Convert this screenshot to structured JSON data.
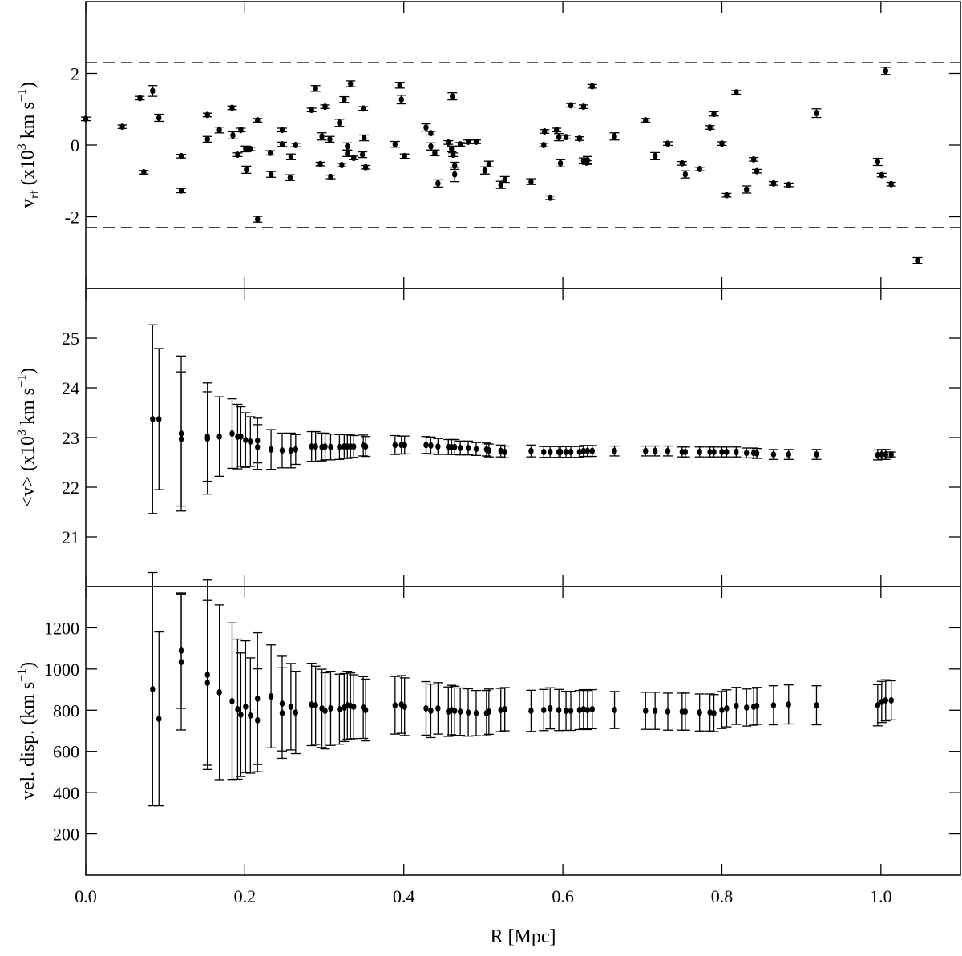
{
  "chart_data": [
    {
      "type": "scatter",
      "color": "#000000",
      "ylabel": [
        {
          "text": "v"
        },
        {
          "text": "rf",
          "script": "sub"
        },
        {
          "text": " (x10"
        },
        {
          "text": "3",
          "script": "super"
        },
        {
          "text": " km s"
        },
        {
          "text": "−1",
          "script": "super"
        },
        {
          "text": ")"
        }
      ],
      "xlim": [
        0,
        1.1
      ],
      "ylim": [
        -4,
        4
      ],
      "yticks": [
        -2,
        0,
        2
      ],
      "xticks": [
        0,
        0.2,
        0.4,
        0.6,
        0.8,
        1
      ],
      "xtick_labels": false,
      "hlines": [
        2.3,
        -2.3
      ],
      "x": [
        0.0,
        0.046,
        0.068,
        0.073,
        0.084,
        0.092,
        0.12,
        0.12,
        0.153,
        0.153,
        0.168,
        0.184,
        0.185,
        0.191,
        0.195,
        0.201,
        0.202,
        0.207,
        0.216,
        0.216,
        0.232,
        0.233,
        0.247,
        0.247,
        0.257,
        0.258,
        0.264,
        0.284,
        0.289,
        0.295,
        0.297,
        0.301,
        0.307,
        0.308,
        0.319,
        0.322,
        0.325,
        0.329,
        0.329,
        0.333,
        0.337,
        0.348,
        0.349,
        0.35,
        0.352,
        0.389,
        0.395,
        0.397,
        0.401,
        0.428,
        0.434,
        0.434,
        0.439,
        0.443,
        0.456,
        0.46,
        0.461,
        0.462,
        0.464,
        0.464,
        0.471,
        0.481,
        0.491,
        0.502,
        0.507,
        0.522,
        0.527,
        0.56,
        0.576,
        0.577,
        0.584,
        0.592,
        0.595,
        0.597,
        0.604,
        0.61,
        0.621,
        0.626,
        0.626,
        0.63,
        0.631,
        0.637,
        0.665,
        0.704,
        0.716,
        0.732,
        0.75,
        0.754,
        0.772,
        0.785,
        0.79,
        0.8,
        0.806,
        0.818,
        0.831,
        0.84,
        0.844,
        0.865,
        0.884,
        0.919,
        0.996,
        1.001,
        1.006,
        1.013,
        1.046
      ],
      "values": [
        0.73,
        0.51,
        1.31,
        -0.76,
        1.51,
        0.76,
        -0.31,
        -1.27,
        0.84,
        0.16,
        0.42,
        1.04,
        0.27,
        -0.27,
        0.42,
        -0.11,
        -0.69,
        -0.11,
        0.69,
        -2.07,
        -0.22,
        -0.82,
        0.42,
        0.02,
        -0.91,
        -0.33,
        0.0,
        0.98,
        1.58,
        -0.53,
        0.24,
        1.07,
        0.16,
        -0.89,
        0.62,
        -0.56,
        1.27,
        -0.04,
        -0.24,
        1.71,
        -0.36,
        -0.27,
        1.02,
        0.2,
        -0.62,
        0.02,
        1.67,
        1.27,
        -0.31,
        0.49,
        0.33,
        -0.04,
        -0.22,
        -1.07,
        0.07,
        -0.11,
        1.36,
        -0.27,
        -0.82,
        -0.58,
        0.02,
        0.09,
        0.09,
        -0.71,
        -0.53,
        -1.11,
        -0.96,
        -1.02,
        0.0,
        0.38,
        -1.47,
        0.42,
        0.22,
        -0.51,
        0.22,
        1.11,
        0.18,
        1.07,
        -0.44,
        -0.49,
        -0.42,
        1.64,
        0.24,
        0.69,
        -0.31,
        0.04,
        -0.51,
        -0.82,
        -0.67,
        0.49,
        0.87,
        0.04,
        -1.4,
        1.47,
        -1.24,
        -0.4,
        -0.73,
        -1.07,
        -1.11,
        0.89,
        -0.47,
        -0.84,
        2.07,
        -1.09,
        -3.22
      ],
      "errors": [
        0.05,
        0.05,
        0.05,
        0.05,
        0.15,
        0.1,
        0.05,
        0.06,
        0.05,
        0.08,
        0.08,
        0.05,
        0.1,
        0.05,
        0.05,
        0.08,
        0.1,
        0.05,
        0.05,
        0.08,
        0.06,
        0.08,
        0.05,
        0.06,
        0.08,
        0.08,
        0.05,
        0.05,
        0.08,
        0.05,
        0.1,
        0.05,
        0.08,
        0.05,
        0.1,
        0.05,
        0.08,
        0.1,
        0.08,
        0.08,
        0.05,
        0.08,
        0.05,
        0.08,
        0.05,
        0.08,
        0.08,
        0.12,
        0.06,
        0.1,
        0.05,
        0.1,
        0.08,
        0.1,
        0.05,
        0.08,
        0.1,
        0.05,
        0.2,
        0.1,
        0.05,
        0.05,
        0.05,
        0.1,
        0.08,
        0.1,
        0.08,
        0.08,
        0.05,
        0.05,
        0.05,
        0.05,
        0.1,
        0.1,
        0.05,
        0.05,
        0.05,
        0.05,
        0.08,
        0.05,
        0.1,
        0.05,
        0.1,
        0.05,
        0.1,
        0.05,
        0.05,
        0.1,
        0.05,
        0.05,
        0.06,
        0.05,
        0.05,
        0.05,
        0.1,
        0.05,
        0.05,
        0.05,
        0.05,
        0.12,
        0.1,
        0.05,
        0.1,
        0.05,
        0.08
      ]
    },
    {
      "type": "scatter",
      "color": "#000000",
      "ylabel": [
        {
          "text": "<v> (x10"
        },
        {
          "text": "3",
          "script": "super"
        },
        {
          "text": " km s"
        },
        {
          "text": "−1",
          "script": "super"
        },
        {
          "text": ")"
        }
      ],
      "xlim": [
        0,
        1.1
      ],
      "ylim": [
        20,
        26
      ],
      "yticks": [
        21,
        22,
        23,
        24,
        25
      ],
      "xticks": [
        0,
        0.2,
        0.4,
        0.6,
        0.8,
        1
      ],
      "xtick_labels": false,
      "x": [
        0.084,
        0.092,
        0.12,
        0.12,
        0.153,
        0.153,
        0.168,
        0.184,
        0.191,
        0.195,
        0.201,
        0.207,
        0.216,
        0.216,
        0.233,
        0.247,
        0.258,
        0.264,
        0.284,
        0.289,
        0.297,
        0.301,
        0.308,
        0.319,
        0.325,
        0.329,
        0.333,
        0.337,
        0.349,
        0.352,
        0.389,
        0.397,
        0.401,
        0.428,
        0.434,
        0.443,
        0.456,
        0.46,
        0.464,
        0.471,
        0.481,
        0.491,
        0.504,
        0.507,
        0.522,
        0.527,
        0.56,
        0.576,
        0.584,
        0.595,
        0.597,
        0.604,
        0.61,
        0.621,
        0.626,
        0.631,
        0.637,
        0.665,
        0.704,
        0.716,
        0.732,
        0.75,
        0.754,
        0.772,
        0.785,
        0.79,
        0.8,
        0.806,
        0.818,
        0.831,
        0.84,
        0.844,
        0.865,
        0.884,
        0.919,
        0.996,
        1.001,
        1.006,
        1.013
      ],
      "values": [
        23.37,
        23.37,
        23.08,
        22.97,
        22.98,
        23.02,
        23.02,
        23.08,
        23.02,
        23.02,
        22.95,
        22.92,
        22.94,
        22.81,
        22.76,
        22.74,
        22.74,
        22.76,
        22.82,
        22.82,
        22.81,
        22.82,
        22.81,
        22.81,
        22.82,
        22.82,
        22.82,
        22.82,
        22.84,
        22.82,
        22.85,
        22.85,
        22.85,
        22.85,
        22.84,
        22.82,
        22.81,
        22.81,
        22.81,
        22.79,
        22.79,
        22.77,
        22.76,
        22.74,
        22.73,
        22.71,
        22.73,
        22.71,
        22.71,
        22.71,
        22.71,
        22.71,
        22.71,
        22.71,
        22.73,
        22.73,
        22.73,
        22.73,
        22.73,
        22.73,
        22.73,
        22.71,
        22.71,
        22.71,
        22.71,
        22.71,
        22.71,
        22.71,
        22.71,
        22.69,
        22.69,
        22.68,
        22.66,
        22.66,
        22.66,
        22.65,
        22.66,
        22.66,
        22.66
      ],
      "errors": [
        1.9,
        1.42,
        1.56,
        1.35,
        1.12,
        0.9,
        0.8,
        0.7,
        0.65,
        0.6,
        0.55,
        0.5,
        0.45,
        0.45,
        0.4,
        0.35,
        0.35,
        0.3,
        0.3,
        0.3,
        0.28,
        0.27,
        0.26,
        0.25,
        0.24,
        0.24,
        0.23,
        0.22,
        0.21,
        0.2,
        0.19,
        0.18,
        0.18,
        0.17,
        0.17,
        0.16,
        0.15,
        0.15,
        0.15,
        0.14,
        0.14,
        0.13,
        0.13,
        0.13,
        0.12,
        0.12,
        0.12,
        0.11,
        0.11,
        0.11,
        0.11,
        0.11,
        0.11,
        0.11,
        0.11,
        0.11,
        0.11,
        0.1,
        0.1,
        0.1,
        0.1,
        0.1,
        0.1,
        0.1,
        0.1,
        0.1,
        0.1,
        0.1,
        0.1,
        0.1,
        0.1,
        0.1,
        0.1,
        0.1,
        0.1,
        0.1,
        0.1,
        0.1,
        0.05
      ]
    },
    {
      "type": "scatter",
      "color": "#000000",
      "ylabel": [
        {
          "text": "vel. disp. (km s"
        },
        {
          "text": "−1",
          "script": "super"
        },
        {
          "text": ")"
        }
      ],
      "xlabel": "R [Mpc]",
      "xlim": [
        0,
        1.1
      ],
      "ylim": [
        0,
        1400
      ],
      "yticks": [
        200,
        400,
        600,
        800,
        1000,
        1200
      ],
      "xticks": [
        {
          "value": 0,
          "label": "0.0"
        },
        0.2,
        0.4,
        0.6,
        0.8,
        {
          "value": 1,
          "label": "1.0"
        }
      ],
      "xtick_labels": true,
      "x": [
        0.084,
        0.092,
        0.12,
        0.12,
        0.153,
        0.153,
        0.168,
        0.184,
        0.191,
        0.195,
        0.201,
        0.207,
        0.216,
        0.216,
        0.233,
        0.247,
        0.247,
        0.258,
        0.264,
        0.284,
        0.289,
        0.297,
        0.301,
        0.308,
        0.319,
        0.325,
        0.329,
        0.333,
        0.337,
        0.349,
        0.352,
        0.389,
        0.397,
        0.401,
        0.428,
        0.434,
        0.443,
        0.456,
        0.46,
        0.464,
        0.471,
        0.481,
        0.491,
        0.504,
        0.507,
        0.522,
        0.527,
        0.56,
        0.576,
        0.584,
        0.595,
        0.604,
        0.61,
        0.621,
        0.626,
        0.631,
        0.637,
        0.665,
        0.704,
        0.716,
        0.732,
        0.75,
        0.754,
        0.772,
        0.785,
        0.79,
        0.8,
        0.806,
        0.818,
        0.831,
        0.84,
        0.844,
        0.865,
        0.884,
        0.919,
        0.996,
        1.001,
        1.006,
        1.013
      ],
      "values": [
        902,
        758,
        1089,
        1034,
        933,
        972,
        887,
        844,
        805,
        778,
        817,
        774,
        856,
        751,
        867,
        832,
        786,
        817,
        789,
        828,
        824,
        809,
        797,
        809,
        805,
        813,
        824,
        821,
        817,
        813,
        801,
        824,
        828,
        817,
        809,
        797,
        809,
        793,
        801,
        797,
        793,
        789,
        786,
        786,
        793,
        801,
        805,
        797,
        801,
        809,
        801,
        797,
        797,
        801,
        805,
        801,
        805,
        801,
        797,
        797,
        793,
        793,
        793,
        789,
        789,
        786,
        801,
        809,
        821,
        813,
        817,
        821,
        824,
        828,
        824,
        824,
        840,
        848,
        848
      ],
      "errors": [
        566,
        422,
        280,
        330,
        400,
        460,
        424,
        380,
        340,
        300,
        320,
        280,
        320,
        250,
        250,
        230,
        220,
        210,
        200,
        200,
        190,
        190,
        185,
        180,
        170,
        165,
        165,
        160,
        155,
        150,
        150,
        140,
        140,
        140,
        130,
        130,
        125,
        120,
        120,
        120,
        115,
        115,
        110,
        110,
        110,
        105,
        105,
        100,
        100,
        100,
        100,
        95,
        95,
        95,
        95,
        95,
        95,
        90,
        90,
        90,
        90,
        90,
        90,
        90,
        90,
        90,
        90,
        90,
        90,
        90,
        90,
        90,
        95,
        95,
        95,
        100,
        100,
        100,
        95
      ]
    }
  ]
}
